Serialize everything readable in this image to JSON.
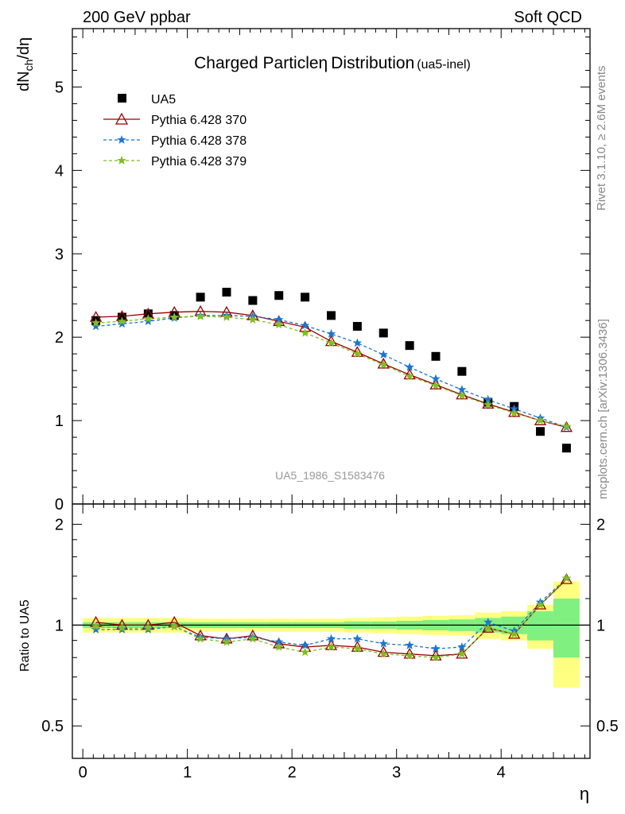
{
  "header": {
    "left": "200 GeV ppbar",
    "right": "Soft QCD"
  },
  "side_labels": {
    "rivet": "Rivet 3.1.10, ≥ 2.6M events",
    "mcplots": "mcplots.cern.ch [arXiv:1306.3436]"
  },
  "colors": {
    "data": "#000000",
    "p370": "#990000",
    "p378": "#1a75d1",
    "p379": "#7fbf1f",
    "band_inner": "#80f080",
    "band_outer": "#ffff80"
  },
  "chart_data": [
    {
      "type": "scatter",
      "panel": "main",
      "title": "Charged Particle",
      "title_symbol": "η",
      "title_rest": "Distribution",
      "title_tag": "(ua5-inel)",
      "ylabel_parts": {
        "a": "dN",
        "sub": "ch",
        "b": "/dη"
      },
      "watermark": "UA5_1986_S1583476",
      "xlim": [
        -0.1,
        4.85
      ],
      "ylim": [
        0,
        5.7
      ],
      "yticks": [
        0,
        1,
        2,
        3,
        4,
        5
      ],
      "ytick_labels": [
        "0",
        "1",
        "2",
        "3",
        "4",
        "5"
      ],
      "x": [
        0.125,
        0.375,
        0.625,
        0.875,
        1.125,
        1.375,
        1.625,
        1.875,
        2.125,
        2.375,
        2.625,
        2.875,
        3.125,
        3.375,
        3.625,
        3.875,
        4.125,
        4.375,
        4.625
      ],
      "series": [
        {
          "name": "UA5",
          "marker": "square",
          "values": [
            2.2,
            2.24,
            2.28,
            2.26,
            2.48,
            2.54,
            2.44,
            2.5,
            2.48,
            2.26,
            2.13,
            2.05,
            1.9,
            1.77,
            1.59,
            1.22,
            1.17,
            0.87,
            0.67
          ]
        },
        {
          "name": "Pythia 6.428 370",
          "marker": "triangle",
          "values": [
            2.24,
            2.25,
            2.28,
            2.3,
            2.31,
            2.3,
            2.26,
            2.19,
            2.12,
            1.95,
            1.82,
            1.68,
            1.55,
            1.43,
            1.31,
            1.2,
            1.1,
            1.0,
            0.92
          ]
        },
        {
          "name": "Pythia 6.428 378",
          "marker": "star",
          "values": [
            2.13,
            2.16,
            2.19,
            2.23,
            2.26,
            2.26,
            2.25,
            2.21,
            2.14,
            2.04,
            1.93,
            1.79,
            1.64,
            1.5,
            1.37,
            1.25,
            1.14,
            1.03,
            0.92
          ]
        },
        {
          "name": "Pythia 6.428 379",
          "marker": "star",
          "values": [
            2.17,
            2.19,
            2.22,
            2.24,
            2.25,
            2.24,
            2.21,
            2.15,
            2.05,
            1.93,
            1.8,
            1.67,
            1.53,
            1.42,
            1.3,
            1.19,
            1.09,
            1.0,
            0.93
          ]
        }
      ]
    },
    {
      "type": "line",
      "panel": "ratio",
      "ylabel": "Ratio to UA5",
      "xlabel": "η",
      "xlim": [
        -0.1,
        4.85
      ],
      "ylim": [
        0.4,
        2.3
      ],
      "xticks": [
        0,
        1,
        2,
        3,
        4
      ],
      "xtick_labels": [
        "0",
        "1",
        "2",
        "3",
        "4"
      ],
      "yticks": [
        0.5,
        1,
        2
      ],
      "ytick_labels": [
        "0.5",
        "1",
        "2"
      ],
      "x": [
        0.125,
        0.375,
        0.625,
        0.875,
        1.125,
        1.375,
        1.625,
        1.875,
        2.125,
        2.375,
        2.625,
        2.875,
        3.125,
        3.375,
        3.625,
        3.875,
        4.125,
        4.375,
        4.625
      ],
      "band_inner": [
        0.02,
        0.02,
        0.02,
        0.02,
        0.02,
        0.02,
        0.02,
        0.02,
        0.02,
        0.02,
        0.025,
        0.025,
        0.03,
        0.035,
        0.04,
        0.05,
        0.06,
        0.1,
        0.2
      ],
      "band_outer": [
        0.05,
        0.05,
        0.05,
        0.05,
        0.045,
        0.045,
        0.045,
        0.045,
        0.045,
        0.045,
        0.05,
        0.055,
        0.06,
        0.065,
        0.07,
        0.09,
        0.1,
        0.15,
        0.35
      ],
      "series": [
        {
          "name": "Pythia 6.428 370",
          "values": [
            1.02,
            1.0,
            1.0,
            1.02,
            0.93,
            0.91,
            0.93,
            0.88,
            0.86,
            0.87,
            0.86,
            0.83,
            0.82,
            0.81,
            0.82,
            0.98,
            0.94,
            1.15,
            1.37
          ]
        },
        {
          "name": "Pythia 6.428 378",
          "values": [
            0.97,
            0.97,
            0.97,
            0.99,
            0.92,
            0.91,
            0.92,
            0.89,
            0.87,
            0.91,
            0.91,
            0.88,
            0.87,
            0.85,
            0.86,
            1.02,
            0.96,
            1.17,
            1.38
          ]
        },
        {
          "name": "Pythia 6.428 379",
          "values": [
            0.99,
            0.98,
            0.98,
            0.99,
            0.91,
            0.89,
            0.91,
            0.86,
            0.83,
            0.86,
            0.85,
            0.82,
            0.81,
            0.8,
            0.82,
            0.98,
            0.94,
            1.15,
            1.38
          ]
        }
      ]
    }
  ]
}
